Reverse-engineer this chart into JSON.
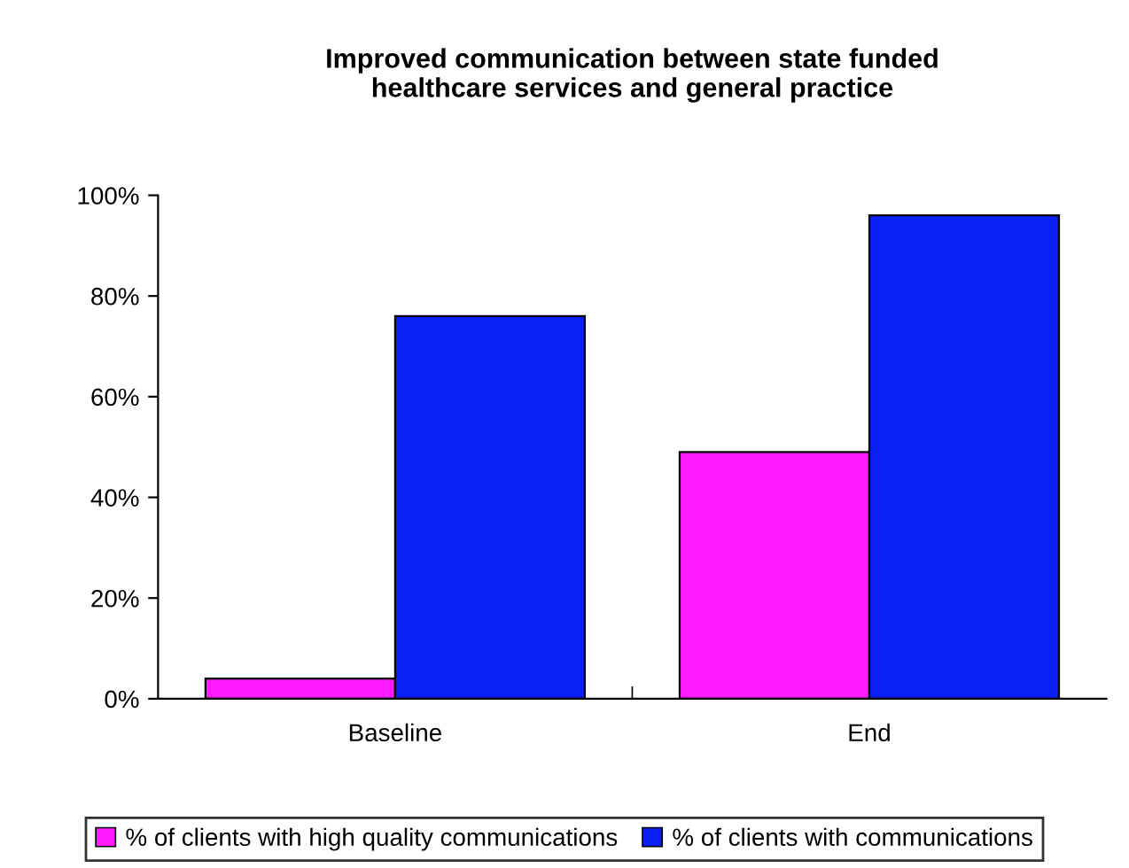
{
  "chart_data": {
    "type": "bar",
    "title": "Improved communication between state funded\nhealthcare services and general practice",
    "categories": [
      "Baseline",
      "End"
    ],
    "series": [
      {
        "name": "% of clients with high quality communications",
        "color": "#ff1aff",
        "values": [
          4,
          49
        ]
      },
      {
        "name": "% of clients with communications",
        "color": "#0a1ff5",
        "values": [
          76,
          96
        ]
      }
    ],
    "ylim": [
      0,
      100
    ],
    "yticks": [
      {
        "value": 0,
        "label": "0%"
      },
      {
        "value": 20,
        "label": "20%"
      },
      {
        "value": 40,
        "label": "40%"
      },
      {
        "value": 60,
        "label": "60%"
      },
      {
        "value": 80,
        "label": "80%"
      },
      {
        "value": 100,
        "label": "100%"
      }
    ],
    "grid": false,
    "legend": "bottom"
  }
}
